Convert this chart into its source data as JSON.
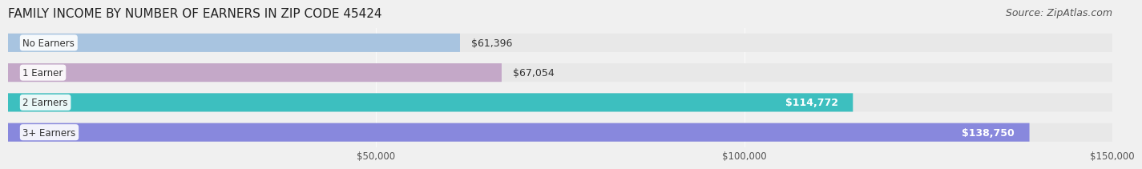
{
  "title": "FAMILY INCOME BY NUMBER OF EARNERS IN ZIP CODE 45424",
  "source": "Source: ZipAtlas.com",
  "categories": [
    "No Earners",
    "1 Earner",
    "2 Earners",
    "3+ Earners"
  ],
  "values": [
    61396,
    67054,
    114772,
    138750
  ],
  "bar_colors": [
    "#a8c4e0",
    "#c4a8c8",
    "#3dbfbf",
    "#8888dd"
  ],
  "label_colors": [
    "#333333",
    "#333333",
    "#ffffff",
    "#ffffff"
  ],
  "xlim": [
    0,
    150000
  ],
  "xtick_values": [
    50000,
    100000,
    150000
  ],
  "xtick_labels": [
    "$50,000",
    "$100,000",
    "$150,000"
  ],
  "background_color": "#f0f0f0",
  "bar_background_color": "#e8e8e8",
  "title_fontsize": 11,
  "source_fontsize": 9,
  "bar_label_fontsize": 9,
  "category_fontsize": 8.5,
  "tick_fontsize": 8.5
}
